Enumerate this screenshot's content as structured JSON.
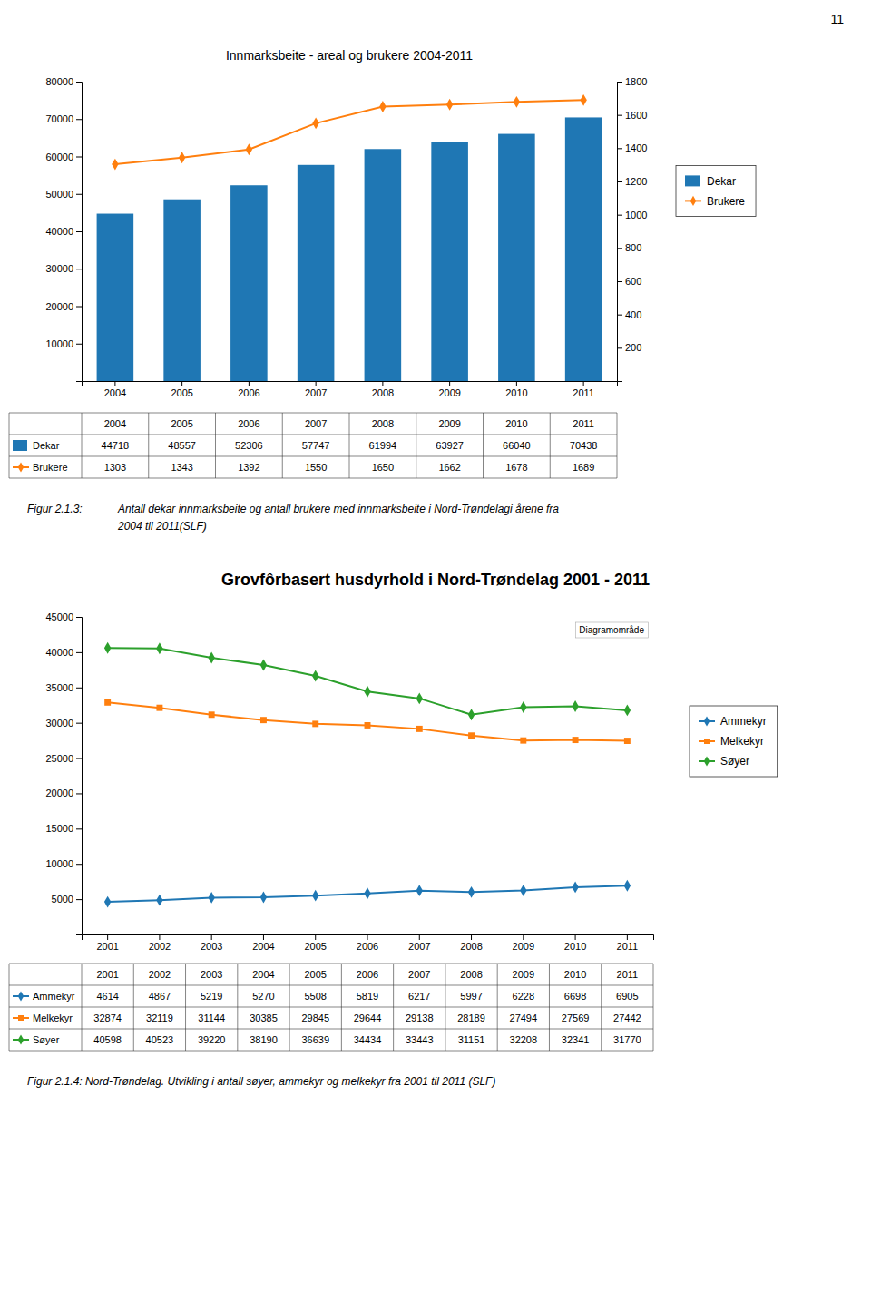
{
  "annotations": [
    "11"
  ],
  "chart_data": [
    {
      "type": "bar",
      "title": "Innmarksbeite - areal og brukere 2004-2011",
      "categories": [
        "2004",
        "2005",
        "2006",
        "2007",
        "2008",
        "2009",
        "2010",
        "2011"
      ],
      "series": [
        {
          "name": "Dekar",
          "type": "bar",
          "values": [
            44718,
            48557,
            52306,
            57747,
            61994,
            63927,
            66040,
            70438
          ]
        },
        {
          "name": "Brukere",
          "type": "line",
          "marker": "diamond",
          "axis": "y2",
          "values": [
            1303,
            1343,
            1392,
            1550,
            1650,
            1662,
            1678,
            1689
          ]
        }
      ],
      "ylim": [
        0,
        80000
      ],
      "yticks": [
        10000,
        20000,
        30000,
        40000,
        50000,
        60000,
        70000,
        80000
      ],
      "y2lim": [
        0,
        1800
      ],
      "y2ticks": [
        200,
        400,
        600,
        800,
        1000,
        1200,
        1400,
        1600,
        1800
      ],
      "grid": false,
      "legend": "right",
      "annotations": [
        "Figur 2.1.3:",
        "Antall dekar innmarksbeite og antall brukere med innmarksbeite i Nord-Trøndelagi årene fra",
        "2004 til 2011(SLF)"
      ]
    },
    {
      "type": "line",
      "title": "Grovfôrbasert husdyrhold i Nord-Trøndelag 2001 - 2011",
      "categories": [
        "2001",
        "2002",
        "2003",
        "2004",
        "2005",
        "2006",
        "2007",
        "2008",
        "2009",
        "2010",
        "2011"
      ],
      "series": [
        {
          "name": "Ammekyr",
          "marker": "diamond",
          "values": [
            4614,
            4867,
            5219,
            5270,
            5508,
            5819,
            6217,
            5997,
            6228,
            6698,
            6905
          ]
        },
        {
          "name": "Melkekyr",
          "marker": "square",
          "values": [
            32874,
            32119,
            31144,
            30385,
            29845,
            29644,
            29138,
            28189,
            27494,
            27569,
            27442
          ]
        },
        {
          "name": "Søyer",
          "marker": "diamond",
          "values": [
            40598,
            40523,
            39220,
            38190,
            36639,
            34434,
            33443,
            31151,
            32208,
            32341,
            31770
          ]
        }
      ],
      "ylim": [
        0,
        45000
      ],
      "yticks": [
        5000,
        10000,
        15000,
        20000,
        25000,
        30000,
        35000,
        40000,
        45000
      ],
      "grid": false,
      "legend": "right",
      "annotations": [
        "Diagramområde",
        "Figur 2.1.4: Nord-Trøndelag. Utvikling i antall søyer, ammekyr og melkekyr fra 2001 til 2011 (SLF)"
      ]
    }
  ]
}
